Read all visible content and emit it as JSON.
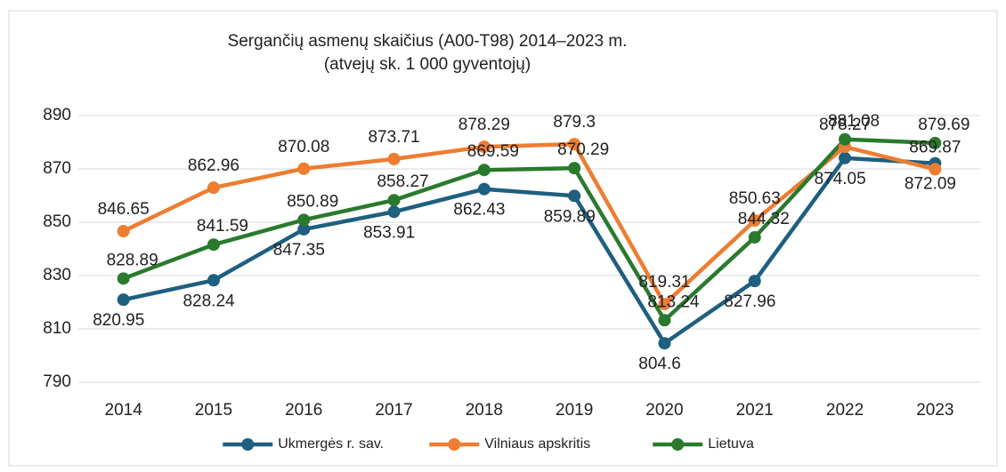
{
  "chart_data": {
    "type": "line",
    "title": "Sergančių asmenų skaičius (A00-T98) 2014–2023 m.",
    "subtitle": "(atvejų sk. 1 000 gyventojų)",
    "categories": [
      "2014",
      "2015",
      "2016",
      "2017",
      "2018",
      "2019",
      "2020",
      "2021",
      "2022",
      "2023"
    ],
    "series": [
      {
        "name": "Ukmergės r. sav.",
        "color": "#1f5f80",
        "values": [
          820.95,
          828.24,
          847.35,
          853.91,
          862.43,
          859.89,
          804.6,
          827.96,
          874.05,
          872.09
        ]
      },
      {
        "name": "Vilniaus apskritis",
        "color": "#ed7d31",
        "values": [
          846.65,
          862.96,
          870.08,
          873.71,
          878.29,
          879.3,
          819.31,
          850.63,
          878.27,
          869.87
        ]
      },
      {
        "name": "Lietuva",
        "color": "#2a7a2e",
        "values": [
          828.89,
          841.59,
          850.89,
          858.27,
          869.59,
          870.29,
          813.24,
          844.32,
          881.08,
          879.69
        ]
      }
    ],
    "ylim": [
      790,
      890
    ],
    "yticks": [
      790,
      810,
      830,
      850,
      870,
      890
    ],
    "grid": true,
    "legend": "bottom"
  }
}
